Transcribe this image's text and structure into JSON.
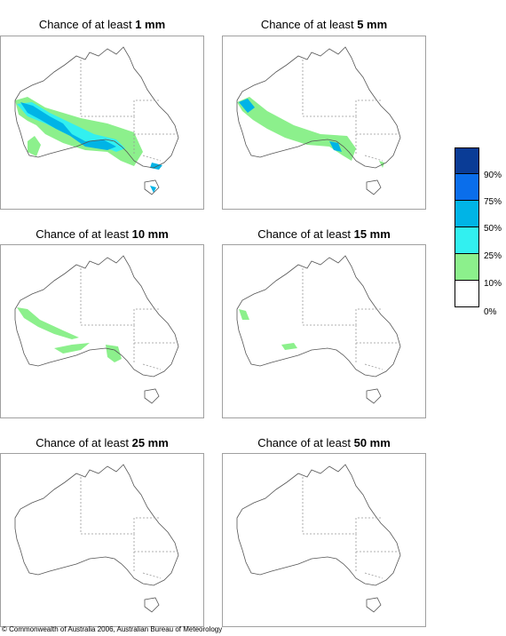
{
  "panels": [
    {
      "prefix": "Chance of at least ",
      "amount": "1 mm"
    },
    {
      "prefix": "Chance of at least ",
      "amount": "5 mm"
    },
    {
      "prefix": "Chance of at least ",
      "amount": "10 mm"
    },
    {
      "prefix": "Chance of at least ",
      "amount": "15 mm"
    },
    {
      "prefix": "Chance of at least ",
      "amount": "25 mm"
    },
    {
      "prefix": "Chance of at least ",
      "amount": "50 mm"
    }
  ],
  "legend": {
    "colors": [
      "#0a3c96",
      "#0a6eeb",
      "#00b4e6",
      "#32f0f0",
      "#8cf08c",
      "#ffffff"
    ],
    "labels": [
      "90%",
      "75%",
      "50%",
      "25%",
      "10%",
      "0%"
    ]
  },
  "copyright": "© Commonwealth of Australia 2006, Australian Bureau of Meteorology"
}
